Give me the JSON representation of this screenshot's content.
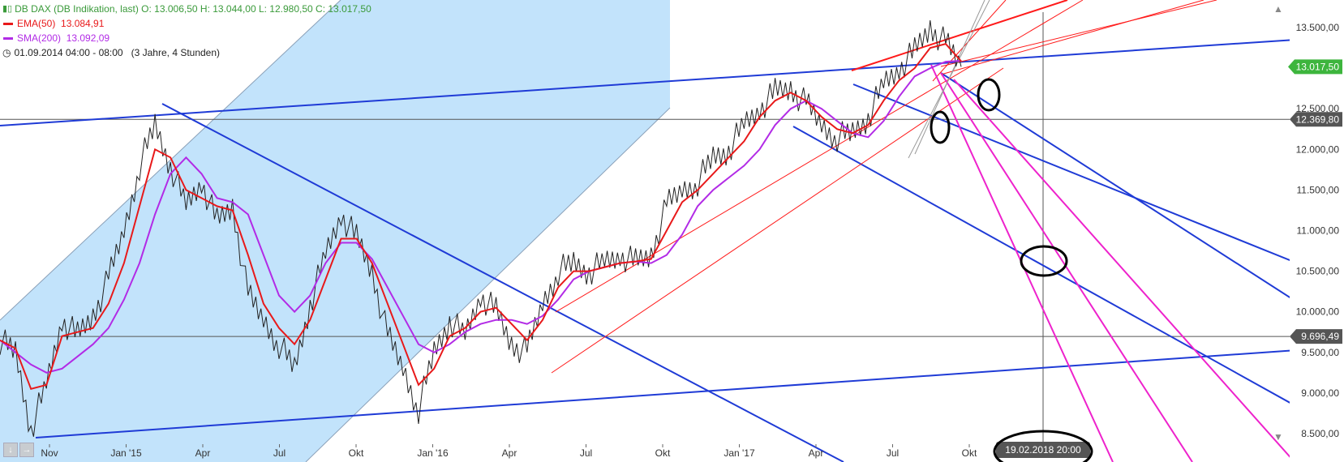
{
  "legend": {
    "instrument": "DB DAX (DB Indikation, last)",
    "open": "O: 13.006,50",
    "high": "H: 13.044,00",
    "low": "L: 12.980,50",
    "close": "C: 13.017,50",
    "ema_label": "EMA(50)",
    "ema_value": "13.084,91",
    "sma_label": "SMA(200)",
    "sma_value": "13.092,09",
    "period": "01.09.2014 04:00 - 08:00",
    "range": "(3 Jahre, 4 Stunden)",
    "icon": "clock-icon"
  },
  "colors": {
    "price": "#222222",
    "ema": "#e8191a",
    "sma": "#b22be6",
    "channel": "#1f3bd6",
    "fan": "#ee22cc",
    "red_channel": "#ff1a1a",
    "shade": "#bfe2fb"
  },
  "chart_data": {
    "type": "line",
    "x_tick_labels": [
      "Nov",
      "Jan '15",
      "Apr",
      "Jul",
      "Okt",
      "Jan '16",
      "Apr",
      "Jul",
      "Okt",
      "Jan '17",
      "Apr",
      "Jul",
      "Okt"
    ],
    "y_tick_labels": [
      "13.500,00",
      "12.500,00",
      "12.000,00",
      "11.500,00",
      "11.000,00",
      "10.500,00",
      "10.000,00",
      "9.500,00",
      "9.000,00",
      "8.500,00"
    ],
    "y_ticks": [
      13500,
      12500,
      12000,
      11500,
      11000,
      10500,
      10000,
      9500,
      9000,
      8500
    ],
    "ylim": [
      8150,
      13840
    ],
    "price_marker": {
      "label": "13.017,50",
      "value": 13017.5
    },
    "hlines": [
      {
        "label": "12.369,80",
        "value": 12369.8
      },
      {
        "label": "9.696,49",
        "value": 9696.49
      }
    ],
    "vline_label": "19.02.2018 20:00",
    "series": [
      {
        "role": "price",
        "values": [
          [
            0,
            9650
          ],
          [
            1,
            9500
          ],
          [
            2,
            8550
          ],
          [
            3,
            9100
          ],
          [
            4,
            9900
          ],
          [
            5,
            9700
          ],
          [
            6,
            9950
          ],
          [
            7,
            10400
          ],
          [
            8,
            11000
          ],
          [
            9,
            11800
          ],
          [
            10,
            12300
          ],
          [
            11,
            11800
          ],
          [
            12,
            11300
          ],
          [
            13,
            11600
          ],
          [
            14,
            11100
          ],
          [
            15,
            11300
          ],
          [
            16,
            10200
          ],
          [
            17,
            9900
          ],
          [
            18,
            9600
          ],
          [
            19,
            9300
          ],
          [
            20,
            10100
          ],
          [
            21,
            10700
          ],
          [
            22,
            11200
          ],
          [
            23,
            10900
          ],
          [
            24,
            10500
          ],
          [
            25,
            9700
          ],
          [
            26,
            9300
          ],
          [
            27,
            8800
          ],
          [
            28,
            9500
          ],
          [
            29,
            9900
          ],
          [
            30,
            9700
          ],
          [
            31,
            10200
          ],
          [
            32,
            10000
          ],
          [
            33,
            9600
          ],
          [
            34,
            9500
          ],
          [
            35,
            10100
          ],
          [
            36,
            10500
          ],
          [
            37,
            10600
          ],
          [
            38,
            10500
          ],
          [
            39,
            10600
          ],
          [
            40,
            10700
          ],
          [
            41,
            10600
          ],
          [
            42,
            10700
          ],
          [
            43,
            11300
          ],
          [
            44,
            11500
          ],
          [
            45,
            11600
          ],
          [
            46,
            11900
          ],
          [
            47,
            12000
          ],
          [
            48,
            12300
          ],
          [
            49,
            12500
          ],
          [
            50,
            12700
          ],
          [
            51,
            12750
          ],
          [
            52,
            12550
          ],
          [
            53,
            12300
          ],
          [
            54,
            12150
          ],
          [
            55,
            12200
          ],
          [
            56,
            12400
          ],
          [
            57,
            12800
          ],
          [
            58,
            13000
          ],
          [
            59,
            13200
          ],
          [
            60,
            13500
          ],
          [
            61,
            13300
          ],
          [
            62,
            13017.5
          ]
        ]
      },
      {
        "role": "ema",
        "name": "EMA(50)",
        "values": [
          [
            0,
            9650
          ],
          [
            1,
            9550
          ],
          [
            2,
            9050
          ],
          [
            3,
            9100
          ],
          [
            4,
            9700
          ],
          [
            5,
            9750
          ],
          [
            6,
            9800
          ],
          [
            7,
            10100
          ],
          [
            8,
            10600
          ],
          [
            9,
            11300
          ],
          [
            10,
            12000
          ],
          [
            11,
            11900
          ],
          [
            12,
            11500
          ],
          [
            13,
            11400
          ],
          [
            14,
            11300
          ],
          [
            15,
            11250
          ],
          [
            16,
            10700
          ],
          [
            17,
            10100
          ],
          [
            18,
            9800
          ],
          [
            19,
            9600
          ],
          [
            20,
            9900
          ],
          [
            21,
            10400
          ],
          [
            22,
            10900
          ],
          [
            23,
            10900
          ],
          [
            24,
            10600
          ],
          [
            25,
            10100
          ],
          [
            26,
            9600
          ],
          [
            27,
            9100
          ],
          [
            28,
            9300
          ],
          [
            29,
            9700
          ],
          [
            30,
            9800
          ],
          [
            31,
            10000
          ],
          [
            32,
            10050
          ],
          [
            33,
            9850
          ],
          [
            34,
            9650
          ],
          [
            35,
            9900
          ],
          [
            36,
            10300
          ],
          [
            37,
            10500
          ],
          [
            38,
            10500
          ],
          [
            39,
            10550
          ],
          [
            40,
            10600
          ],
          [
            41,
            10620
          ],
          [
            42,
            10650
          ],
          [
            43,
            11000
          ],
          [
            44,
            11350
          ],
          [
            45,
            11500
          ],
          [
            46,
            11700
          ],
          [
            47,
            11900
          ],
          [
            48,
            12100
          ],
          [
            49,
            12400
          ],
          [
            50,
            12600
          ],
          [
            51,
            12700
          ],
          [
            52,
            12600
          ],
          [
            53,
            12400
          ],
          [
            54,
            12250
          ],
          [
            55,
            12200
          ],
          [
            56,
            12300
          ],
          [
            57,
            12600
          ],
          [
            58,
            12850
          ],
          [
            59,
            13000
          ],
          [
            60,
            13250
          ],
          [
            61,
            13300
          ],
          [
            62,
            13084.91
          ]
        ]
      },
      {
        "role": "sma",
        "name": "SMA(200)",
        "values": [
          [
            0,
            9650
          ],
          [
            1,
            9500
          ],
          [
            2,
            9350
          ],
          [
            3,
            9250
          ],
          [
            4,
            9300
          ],
          [
            5,
            9450
          ],
          [
            6,
            9600
          ],
          [
            7,
            9800
          ],
          [
            8,
            10150
          ],
          [
            9,
            10600
          ],
          [
            10,
            11200
          ],
          [
            11,
            11700
          ],
          [
            12,
            11900
          ],
          [
            13,
            11700
          ],
          [
            14,
            11400
          ],
          [
            15,
            11350
          ],
          [
            16,
            11200
          ],
          [
            17,
            10700
          ],
          [
            18,
            10200
          ],
          [
            19,
            10000
          ],
          [
            20,
            10200
          ],
          [
            21,
            10600
          ],
          [
            22,
            10850
          ],
          [
            23,
            10850
          ],
          [
            24,
            10650
          ],
          [
            25,
            10300
          ],
          [
            26,
            9950
          ],
          [
            27,
            9600
          ],
          [
            28,
            9500
          ],
          [
            29,
            9600
          ],
          [
            30,
            9750
          ],
          [
            31,
            9850
          ],
          [
            32,
            9900
          ],
          [
            33,
            9900
          ],
          [
            34,
            9850
          ],
          [
            35,
            9950
          ],
          [
            36,
            10150
          ],
          [
            37,
            10400
          ],
          [
            38,
            10500
          ],
          [
            39,
            10550
          ],
          [
            40,
            10600
          ],
          [
            41,
            10620
          ],
          [
            42,
            10600
          ],
          [
            43,
            10700
          ],
          [
            44,
            10950
          ],
          [
            45,
            11300
          ],
          [
            46,
            11500
          ],
          [
            47,
            11650
          ],
          [
            48,
            11800
          ],
          [
            49,
            12000
          ],
          [
            50,
            12300
          ],
          [
            51,
            12500
          ],
          [
            52,
            12600
          ],
          [
            53,
            12500
          ],
          [
            54,
            12350
          ],
          [
            55,
            12200
          ],
          [
            56,
            12150
          ],
          [
            57,
            12350
          ],
          [
            58,
            12650
          ],
          [
            59,
            12900
          ],
          [
            60,
            13000
          ],
          [
            61,
            13080
          ],
          [
            62,
            13092.09
          ]
        ]
      }
    ]
  }
}
